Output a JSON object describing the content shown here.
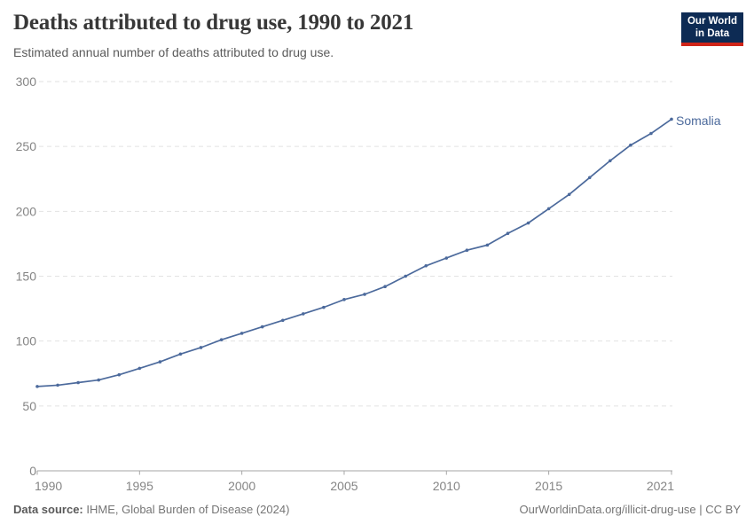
{
  "header": {
    "title": "Deaths attributed to drug use, 1990 to 2021",
    "subtitle": "Estimated annual number of deaths attributed to drug use."
  },
  "logo": {
    "line1": "Our World",
    "line2": "in Data",
    "bg_color": "#0d2b54",
    "accent_color": "#cf2418"
  },
  "chart_data": {
    "type": "line",
    "title": "Deaths attributed to drug use, 1990 to 2021",
    "subtitle": "Estimated annual number of deaths attributed to drug use.",
    "x": [
      1990,
      1991,
      1992,
      1993,
      1994,
      1995,
      1996,
      1997,
      1998,
      1999,
      2000,
      2001,
      2002,
      2003,
      2004,
      2005,
      2006,
      2007,
      2008,
      2009,
      2010,
      2011,
      2012,
      2013,
      2014,
      2015,
      2016,
      2017,
      2018,
      2019,
      2020,
      2021
    ],
    "series": [
      {
        "name": "Somalia",
        "color": "#4C6A9C",
        "values": [
          65,
          66,
          68,
          70,
          74,
          79,
          84,
          90,
          95,
          101,
          106,
          111,
          116,
          121,
          126,
          132,
          136,
          142,
          150,
          158,
          164,
          170,
          174,
          183,
          191,
          202,
          213,
          226,
          239,
          251,
          260,
          271
        ]
      }
    ],
    "xlabel": "",
    "ylabel": "",
    "ylim": [
      0,
      300
    ],
    "yticks": [
      0,
      50,
      100,
      150,
      200,
      250,
      300
    ],
    "xticks": [
      1990,
      1995,
      2000,
      2005,
      2010,
      2015,
      2021
    ],
    "grid": "horizontal-dashed",
    "legend": "end-of-line-label",
    "grid_color": "#e2e2e2",
    "axis_color": "#a6a6a6"
  },
  "footer": {
    "source_label": "Data source:",
    "source_text": "IHME, Global Burden of Disease (2024)",
    "attribution": "OurWorldinData.org/illicit-drug-use | CC BY"
  }
}
